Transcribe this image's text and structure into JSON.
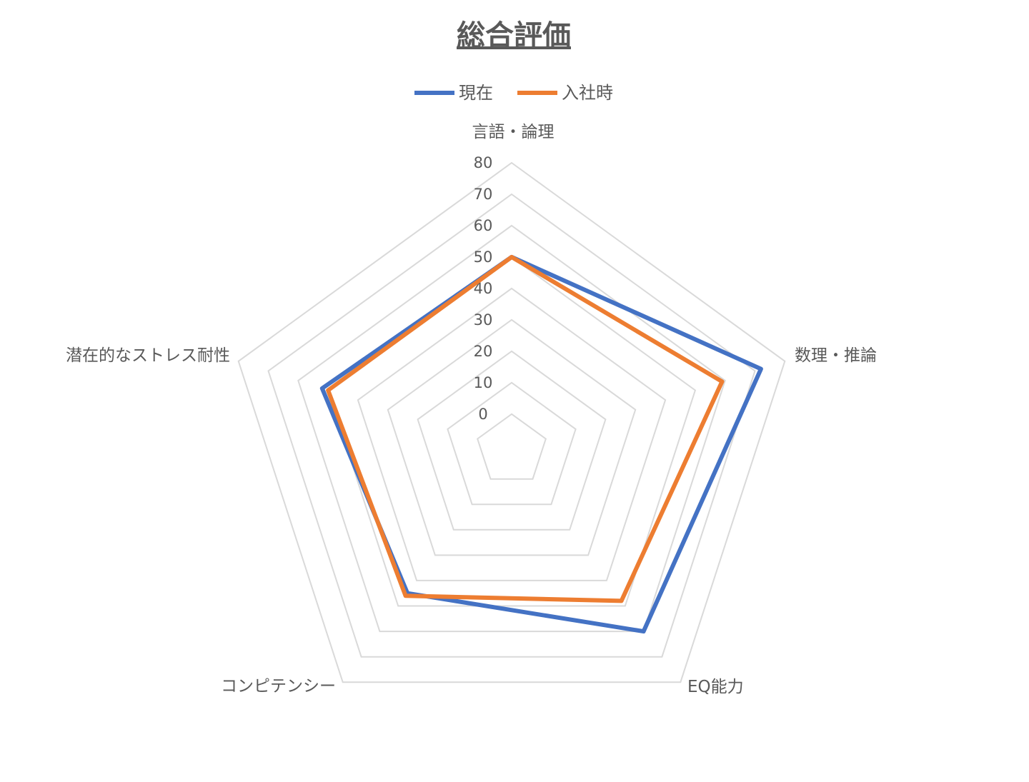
{
  "chart_data": {
    "type": "radar",
    "title": "総合評価",
    "axes": [
      "言語・論理",
      "数理・推論",
      "EQ能力",
      "コンピテンシー",
      "潜在的なストレス耐性"
    ],
    "ticks": [
      "0",
      "10",
      "20",
      "30",
      "40",
      "50",
      "60",
      "70",
      "80"
    ],
    "range": [
      0,
      80
    ],
    "legend_position": "top",
    "series": [
      {
        "name": "現在",
        "color": "#4472C4",
        "values": [
          50,
          72,
          60,
          45,
          52
        ]
      },
      {
        "name": "入社時",
        "color": "#ED7D31",
        "values": [
          50,
          59,
          48,
          46,
          50
        ]
      }
    ]
  }
}
